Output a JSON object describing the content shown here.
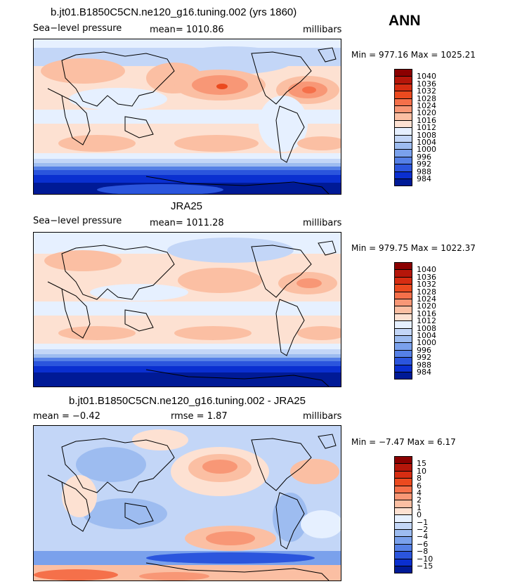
{
  "season": "ANN",
  "panels": [
    {
      "title": "b.jt01.B1850C5CN.ne120_g16.tuning.002 (yrs 1860)",
      "left_label": "Sea−level pressure",
      "center_label": "mean= 1010.86",
      "units": "millibars",
      "minmax": "Min = 977.16 Max = 1025.21",
      "colorbar": {
        "labels": [
          "1040",
          "1036",
          "1032",
          "1028",
          "1024",
          "1020",
          "1016",
          "1012",
          "1008",
          "1004",
          "1000",
          "996",
          "992",
          "988",
          "984"
        ],
        "colors": [
          "#8b0000",
          "#b5160a",
          "#d62d12",
          "#eb4a1f",
          "#f5704a",
          "#f89776",
          "#fbbfa3",
          "#fde1d2",
          "#e6f0ff",
          "#c3d6f7",
          "#9dbcf0",
          "#7aa1ec",
          "#5580e6",
          "#2b55dd",
          "#0a2fd0",
          "#001a96"
        ]
      }
    },
    {
      "title": "JRA25",
      "left_label": "Sea−level pressure",
      "center_label": "mean= 1011.28",
      "units": "millibars",
      "minmax": "Min = 979.75 Max = 1022.37",
      "colorbar": {
        "labels": [
          "1040",
          "1036",
          "1032",
          "1028",
          "1024",
          "1020",
          "1016",
          "1012",
          "1008",
          "1004",
          "1000",
          "996",
          "992",
          "988",
          "984"
        ],
        "colors": [
          "#8b0000",
          "#b5160a",
          "#d62d12",
          "#eb4a1f",
          "#f5704a",
          "#f89776",
          "#fbbfa3",
          "#fde1d2",
          "#e6f0ff",
          "#c3d6f7",
          "#9dbcf0",
          "#7aa1ec",
          "#5580e6",
          "#2b55dd",
          "#0a2fd0",
          "#001a96"
        ]
      }
    },
    {
      "title": "b.jt01.B1850C5CN.ne120_g16.tuning.002 - JRA25",
      "left_label": "mean =   −0.42",
      "center_label": "rmse =    1.87",
      "units": "millibars",
      "minmax": "Min =  −7.47 Max =   6.17",
      "colorbar": {
        "labels": [
          "15",
          "10",
          "8",
          "6",
          "4",
          "2",
          "1",
          "0",
          "−1",
          "−2",
          "−4",
          "−6",
          "−8",
          "−10",
          "−15"
        ],
        "colors": [
          "#8b0000",
          "#b5160a",
          "#d62d12",
          "#eb4a1f",
          "#f5704a",
          "#f89776",
          "#fbbfa3",
          "#fde1d2",
          "#e6f0ff",
          "#c3d6f7",
          "#9dbcf0",
          "#7aa1ec",
          "#5580e6",
          "#2b55dd",
          "#0a2fd0",
          "#001a96"
        ]
      }
    }
  ]
}
